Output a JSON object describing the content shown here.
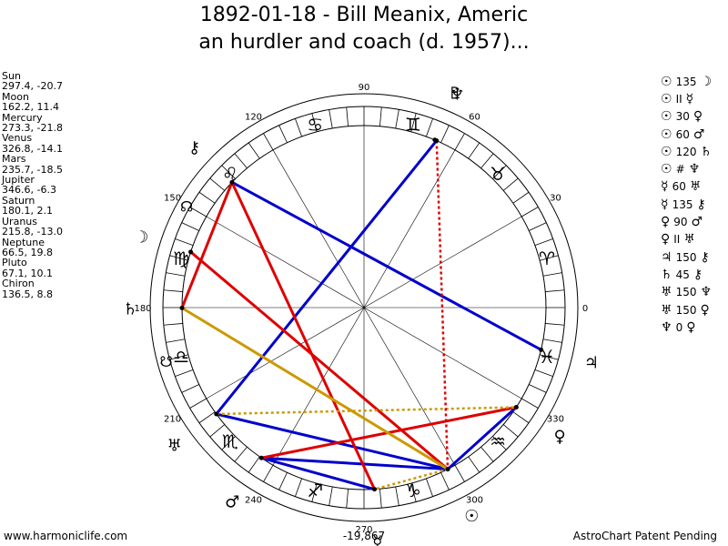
{
  "title": {
    "line1": "1892-01-18 - Bill Meanix, Americ",
    "line2": "an hurdler and coach (d. 1957)..."
  },
  "positions": [
    {
      "name": "Sun",
      "value": "297.4, -20.7"
    },
    {
      "name": "Moon",
      "value": "162.2, 11.4"
    },
    {
      "name": "Mercury",
      "value": "273.3, -21.8"
    },
    {
      "name": "Venus",
      "value": "326.8, -14.1"
    },
    {
      "name": "Mars",
      "value": "235.7, -18.5"
    },
    {
      "name": "Jupiter",
      "value": "346.6, -6.3"
    },
    {
      "name": "Saturn",
      "value": "180.1, 2.1"
    },
    {
      "name": "Uranus",
      "value": "215.8, -13.0"
    },
    {
      "name": "Neptune",
      "value": "66.5, 19.8"
    },
    {
      "name": "Pluto",
      "value": "67.1, 10.1"
    },
    {
      "name": "Chiron",
      "value": "136.5, 8.8"
    }
  ],
  "aspects": [
    {
      "p1": "☉",
      "angle": "135",
      "p2": "☽"
    },
    {
      "p1": "☉",
      "angle": "II",
      "p2": "☿"
    },
    {
      "p1": "☉",
      "angle": "30",
      "p2": "♀"
    },
    {
      "p1": "☉",
      "angle": "60",
      "p2": "♂"
    },
    {
      "p1": "☉",
      "angle": "120",
      "p2": "♄"
    },
    {
      "p1": "☉",
      "angle": "#",
      "p2": "♆"
    },
    {
      "p1": "☿",
      "angle": "60",
      "p2": "♅"
    },
    {
      "p1": "☿",
      "angle": "135",
      "p2": "⚷"
    },
    {
      "p1": "♀",
      "angle": "90",
      "p2": "♂"
    },
    {
      "p1": "♀",
      "angle": "II",
      "p2": "♅"
    },
    {
      "p1": "♃",
      "angle": "150",
      "p2": "⚷"
    },
    {
      "p1": "♄",
      "angle": "45",
      "p2": "⚷"
    },
    {
      "p1": "♅",
      "angle": "150",
      "p2": "♆"
    },
    {
      "p1": "♅",
      "angle": "150",
      "p2": "♀"
    },
    {
      "p1": "♆",
      "angle": "0",
      "p2": "♀"
    }
  ],
  "wheel": {
    "degree_labels": [
      "0",
      "30",
      "60",
      "90",
      "120",
      "150",
      "180",
      "210",
      "240",
      "270",
      "300",
      "330"
    ],
    "sign_glyphs": [
      "♈",
      "♉",
      "♊",
      "♋",
      "♌",
      "♍",
      "♎",
      "♏",
      "♐",
      "♑",
      "♒",
      "♓"
    ],
    "planets": [
      {
        "name": "Sun",
        "glyph": "☉",
        "lon": 297.4
      },
      {
        "name": "Moon",
        "glyph": "☽",
        "lon": 162.2
      },
      {
        "name": "Mercury",
        "glyph": "☿",
        "lon": 273.3
      },
      {
        "name": "Venus",
        "glyph": "♀",
        "lon": 326.8
      },
      {
        "name": "Mars",
        "glyph": "♂",
        "lon": 235.7
      },
      {
        "name": "Jupiter",
        "glyph": "♃",
        "lon": 346.6
      },
      {
        "name": "Saturn",
        "glyph": "♄",
        "lon": 180.1
      },
      {
        "name": "Uranus",
        "glyph": "♅",
        "lon": 215.8
      },
      {
        "name": "Neptune",
        "glyph": "♆",
        "lon": 66.5
      },
      {
        "name": "Pluto",
        "glyph": "♇",
        "lon": 67.1
      },
      {
        "name": "Chiron",
        "glyph": "⚷",
        "lon": 136.5
      }
    ],
    "node_glyphs": [
      {
        "glyph": "☊",
        "lon": 150
      },
      {
        "glyph": "☋",
        "lon": 195
      }
    ],
    "aspect_lines": [
      {
        "from": "Chiron",
        "to": "Jupiter",
        "color": "#0000cc",
        "style": "solid"
      },
      {
        "from": "Neptune",
        "to": "Uranus",
        "color": "#0000cc",
        "style": "solid"
      },
      {
        "from": "Uranus",
        "to": "Sun",
        "color": "#0000cc",
        "style": "solid"
      },
      {
        "from": "Venus",
        "to": "Sun",
        "color": "#0000cc",
        "style": "solid"
      },
      {
        "from": "Mars",
        "to": "Mercury",
        "color": "#0000cc",
        "style": "solid"
      },
      {
        "from": "Mars",
        "to": "Sun",
        "color": "#0000cc",
        "style": "solid"
      },
      {
        "from": "Chiron",
        "to": "Saturn",
        "color": "#dd0000",
        "style": "solid"
      },
      {
        "from": "Chiron",
        "to": "Mercury",
        "color": "#dd0000",
        "style": "solid"
      },
      {
        "from": "Moon",
        "to": "Sun",
        "color": "#dd0000",
        "style": "solid"
      },
      {
        "from": "Mars",
        "to": "Venus",
        "color": "#dd0000",
        "style": "solid"
      },
      {
        "from": "Saturn",
        "to": "Sun",
        "color": "#cc9900",
        "style": "solid"
      },
      {
        "from": "Uranus",
        "to": "Venus",
        "color": "#cc9900",
        "style": "dotted"
      },
      {
        "from": "Sun",
        "to": "Mercury",
        "color": "#cc9900",
        "style": "dotted"
      },
      {
        "from": "Neptune",
        "to": "Sun",
        "color": "#dd0000",
        "style": "dotted"
      }
    ]
  },
  "footer": {
    "left": "www.harmoniclife.com",
    "center": "-19,867",
    "right": "AstroChart Patent Pending"
  }
}
